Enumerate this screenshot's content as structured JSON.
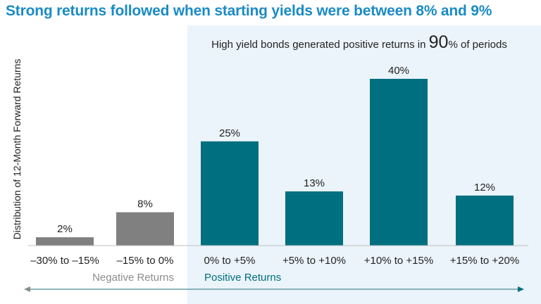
{
  "title": "Strong returns followed when starting yields were between 8% and 9%",
  "annotation": {
    "prefix": "High yield bonds generated positive returns in ",
    "value": "90",
    "suffix": "% of periods"
  },
  "colors": {
    "title": "#1a8bc6",
    "negative": "#808080",
    "positive": "#006f80",
    "panel": "#ebf4fa",
    "arrow": "#4a8a92"
  },
  "chart_data": {
    "type": "bar",
    "title": "Strong returns followed when starting yields were between 8% and 9%",
    "ylabel": "Distribution of 12-Month Forward Returns",
    "xlabel": "",
    "categories": [
      "–30% to –15%",
      "–15% to 0%",
      "0% to +5%",
      "+5% to +10%",
      "+10% to +15%",
      "+15% to +20%"
    ],
    "values": [
      2,
      8,
      25,
      13,
      40,
      12
    ],
    "value_labels": [
      "2%",
      "8%",
      "25%",
      "13%",
      "40%",
      "12%"
    ],
    "groups": [
      {
        "name": "Negative Returns",
        "start": 0,
        "end": 1
      },
      {
        "name": "Positive Returns",
        "start": 2,
        "end": 5
      }
    ],
    "ylim": [
      0,
      42
    ],
    "grid": false
  }
}
